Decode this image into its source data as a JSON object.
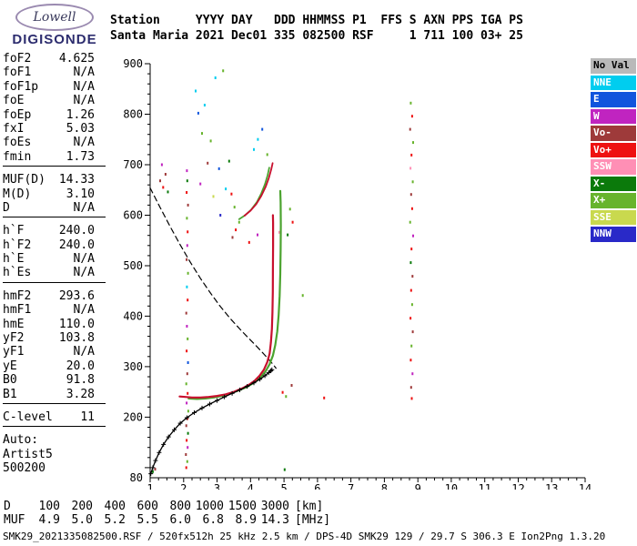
{
  "logo": {
    "name": "Lowell",
    "product": "DIGISONDE"
  },
  "header": {
    "line1": "Station     YYYY DAY   DDD HHMMSS P1  FFS S AXN PPS IGA PS",
    "line2": "Santa Maria 2021 Dec01 335 082500 RSF     1 711 100 03+ 25"
  },
  "params": {
    "groups": [
      {
        "divider": true,
        "rows": [
          {
            "label": "foF2",
            "value": "4.625"
          },
          {
            "label": "foF1",
            "value": "N/A"
          },
          {
            "label": "foF1p",
            "value": "N/A"
          },
          {
            "label": "foE",
            "value": "N/A"
          },
          {
            "label": "foEp",
            "value": "1.26"
          },
          {
            "label": "fxI",
            "value": "5.03"
          },
          {
            "label": "foEs",
            "value": "N/A"
          },
          {
            "label": "fmin",
            "value": "1.73"
          }
        ]
      },
      {
        "divider": true,
        "rows": [
          {
            "label": "MUF(D)",
            "value": "14.33"
          },
          {
            "label": "M(D)",
            "value": "3.10"
          },
          {
            "label": "D",
            "value": "N/A"
          }
        ]
      },
      {
        "divider": true,
        "rows": [
          {
            "label": "h`F",
            "value": "240.0"
          },
          {
            "label": "h`F2",
            "value": "240.0"
          },
          {
            "label": "h`E",
            "value": "N/A"
          },
          {
            "label": "h`Es",
            "value": "N/A"
          }
        ]
      },
      {
        "divider": true,
        "rows": [
          {
            "label": "hmF2",
            "value": "293.6"
          },
          {
            "label": "hmF1",
            "value": "N/A"
          },
          {
            "label": "hmE",
            "value": "110.0"
          },
          {
            "label": "yF2",
            "value": "103.8"
          },
          {
            "label": "yF1",
            "value": "N/A"
          },
          {
            "label": "yE",
            "value": "20.0"
          },
          {
            "label": "B0",
            "value": "91.8"
          },
          {
            "label": "B1",
            "value": "3.28"
          }
        ]
      },
      {
        "divider": true,
        "rows": [
          {
            "label": "C-level",
            "value": "11"
          }
        ]
      },
      {
        "divider": false,
        "rows": [
          {
            "label": "Auto:",
            "value": ""
          },
          {
            "label": "Artist5",
            "value": ""
          },
          {
            "label": "500200",
            "value": ""
          }
        ]
      }
    ]
  },
  "legend": {
    "items": [
      {
        "key": "NoVal",
        "slug": "no-val",
        "label": "No Val",
        "color": "#b9b9b9",
        "text_color": "#000000"
      },
      {
        "key": "NNE",
        "slug": "nne",
        "label": "NNE",
        "color": "#00cdef",
        "text_color": "#ffffff"
      },
      {
        "key": "E",
        "slug": "e",
        "label": "E",
        "color": "#1155dd",
        "text_color": "#ffffff"
      },
      {
        "key": "W",
        "slug": "w",
        "label": "W",
        "color": "#c024c0",
        "text_color": "#ffffff"
      },
      {
        "key": "Vo-",
        "slug": "vo-minus",
        "label": "Vo-",
        "color": "#9e3a3a",
        "text_color": "#ffffff"
      },
      {
        "key": "Vo+",
        "slug": "vo-plus",
        "label": "Vo+",
        "color": "#ee1111",
        "text_color": "#ffffff"
      },
      {
        "key": "SSW",
        "slug": "ssw",
        "label": "SSW",
        "color": "#ff8fb5",
        "text_color": "#ffffff"
      },
      {
        "key": "X-",
        "slug": "x-minus",
        "label": "X-",
        "color": "#0b7a0b",
        "text_color": "#ffffff"
      },
      {
        "key": "X+",
        "slug": "x-plus",
        "label": "X+",
        "color": "#67b42c",
        "text_color": "#ffffff"
      },
      {
        "key": "SSE",
        "slug": "sse",
        "label": "SSE",
        "color": "#c9d94e",
        "text_color": "#ffffff"
      },
      {
        "key": "NNW",
        "slug": "nnw",
        "label": "NNW",
        "color": "#2929c8",
        "text_color": "#ffffff"
      }
    ]
  },
  "chart_data": {
    "type": "scatter",
    "description": "Digisonde ionogram: echo virtual height [km] vs frequency [MHz]",
    "x_axis": {
      "min": 1,
      "max": 14,
      "unit": "MHz",
      "ticks": [
        [
          1,
          "1"
        ],
        [
          2,
          "2"
        ],
        [
          3,
          "3"
        ],
        [
          4,
          "4"
        ],
        [
          5,
          "5"
        ],
        [
          6,
          "6"
        ],
        [
          7,
          "7"
        ],
        [
          8,
          "8"
        ],
        [
          9,
          "9"
        ],
        [
          10,
          "10"
        ],
        [
          11,
          "11"
        ],
        [
          12,
          "12"
        ],
        [
          13,
          "13"
        ],
        [
          14,
          "14"
        ]
      ]
    },
    "y_axis": {
      "min": 80,
      "max": 900,
      "unit": "km",
      "ticks": [
        [
          900,
          "900"
        ],
        [
          800,
          "800"
        ],
        [
          700,
          "700"
        ],
        [
          600,
          "600"
        ],
        [
          500,
          "500"
        ],
        [
          400,
          "400"
        ],
        [
          300,
          "300"
        ],
        [
          200,
          "200"
        ],
        [
          80,
          "80"
        ]
      ]
    },
    "series": [
      {
        "name": "muf-transmission-curve",
        "color": "#000000",
        "width": 1.2,
        "dash": "6,4",
        "points": [
          [
            1.0,
            654
          ],
          [
            1.3,
            615
          ],
          [
            1.6,
            577
          ],
          [
            1.9,
            541
          ],
          [
            2.2,
            507
          ],
          [
            2.5,
            475
          ],
          [
            2.8,
            446
          ],
          [
            3.1,
            419
          ],
          [
            3.4,
            395
          ],
          [
            3.7,
            373
          ],
          [
            3.95,
            356
          ],
          [
            4.2,
            339
          ],
          [
            4.4,
            325
          ],
          [
            4.55,
            314
          ],
          [
            4.68,
            304
          ],
          [
            4.76,
            297
          ]
        ]
      },
      {
        "name": "second-hop-x-trace",
        "color": "#4ba32f",
        "width": 1.8,
        "points": [
          [
            3.66,
            592
          ],
          [
            3.84,
            600
          ],
          [
            4.02,
            611
          ],
          [
            4.19,
            626
          ],
          [
            4.32,
            643
          ],
          [
            4.43,
            661
          ],
          [
            4.51,
            679
          ],
          [
            4.56,
            694
          ]
        ]
      },
      {
        "name": "second-hop-o-trace",
        "color": "#c8102e",
        "width": 1.8,
        "points": [
          [
            3.82,
            599
          ],
          [
            4.0,
            609
          ],
          [
            4.17,
            622
          ],
          [
            4.32,
            638
          ],
          [
            4.45,
            656
          ],
          [
            4.55,
            674
          ],
          [
            4.62,
            691
          ],
          [
            4.66,
            703
          ]
        ]
      },
      {
        "name": "x-trace",
        "color": "#4ba32f",
        "width": 2.2,
        "points": [
          [
            2.15,
            237
          ],
          [
            2.4,
            236
          ],
          [
            2.65,
            237
          ],
          [
            2.9,
            239
          ],
          [
            3.15,
            242
          ],
          [
            3.4,
            247
          ],
          [
            3.65,
            253
          ],
          [
            3.9,
            260
          ],
          [
            4.12,
            269
          ],
          [
            4.3,
            279
          ],
          [
            4.45,
            291
          ],
          [
            4.57,
            305
          ],
          [
            4.67,
            322
          ],
          [
            4.74,
            343
          ],
          [
            4.8,
            370
          ],
          [
            4.84,
            402
          ],
          [
            4.87,
            440
          ],
          [
            4.89,
            484
          ],
          [
            4.9,
            532
          ],
          [
            4.905,
            580
          ],
          [
            4.9,
            625
          ],
          [
            4.89,
            648
          ]
        ]
      },
      {
        "name": "o-trace",
        "color": "#c8102e",
        "width": 2.2,
        "points": [
          [
            1.88,
            241
          ],
          [
            2.05,
            240
          ],
          [
            2.25,
            239
          ],
          [
            2.5,
            239
          ],
          [
            2.75,
            240
          ],
          [
            3.0,
            242
          ],
          [
            3.25,
            245
          ],
          [
            3.5,
            250
          ],
          [
            3.75,
            257
          ],
          [
            3.95,
            264
          ],
          [
            4.12,
            272
          ],
          [
            4.27,
            282
          ],
          [
            4.4,
            294
          ],
          [
            4.5,
            309
          ],
          [
            4.57,
            326
          ],
          [
            4.61,
            348
          ],
          [
            4.64,
            375
          ],
          [
            4.655,
            408
          ],
          [
            4.665,
            448
          ],
          [
            4.67,
            492
          ],
          [
            4.675,
            540
          ],
          [
            4.675,
            585
          ],
          [
            4.67,
            600
          ]
        ]
      },
      {
        "name": "true-height-profile",
        "color": "#000000",
        "width": 1.3,
        "markers": true,
        "points": [
          [
            1.02,
            88
          ],
          [
            1.08,
            100
          ],
          [
            1.16,
            114
          ],
          [
            1.27,
            130
          ],
          [
            1.4,
            146
          ],
          [
            1.55,
            161
          ],
          [
            1.72,
            175
          ],
          [
            1.9,
            188
          ],
          [
            2.1,
            199
          ],
          [
            2.32,
            209
          ],
          [
            2.55,
            218
          ],
          [
            2.78,
            226
          ],
          [
            3.0,
            233
          ],
          [
            3.22,
            240
          ],
          [
            3.45,
            247
          ],
          [
            3.68,
            254
          ],
          [
            3.9,
            261
          ],
          [
            4.1,
            268
          ],
          [
            4.28,
            275
          ],
          [
            4.43,
            282
          ],
          [
            4.54,
            288
          ],
          [
            4.61,
            292
          ],
          [
            4.64,
            294
          ]
        ]
      }
    ],
    "echoes": [
      [
        2.08,
        100,
        "Vo+"
      ],
      [
        2.11,
        112,
        "X+"
      ],
      [
        2.07,
        126,
        "Vo-"
      ],
      [
        2.12,
        140,
        "W"
      ],
      [
        2.09,
        154,
        "Vo+"
      ],
      [
        2.13,
        168,
        "X-"
      ],
      [
        2.08,
        183,
        "Vo-"
      ],
      [
        2.11,
        197,
        "Vo+"
      ],
      [
        2.14,
        212,
        "X+"
      ],
      [
        2.09,
        228,
        "W"
      ],
      [
        2.12,
        247,
        "Vo+"
      ],
      [
        2.08,
        266,
        "X+"
      ],
      [
        2.11,
        286,
        "Vo-"
      ],
      [
        2.13,
        308,
        "E"
      ],
      [
        2.09,
        331,
        "Vo+"
      ],
      [
        2.12,
        355,
        "X+"
      ],
      [
        2.1,
        380,
        "W"
      ],
      [
        2.08,
        406,
        "Vo-"
      ],
      [
        2.12,
        432,
        "Vo+"
      ],
      [
        2.1,
        458,
        "NNE"
      ],
      [
        2.13,
        485,
        "X+"
      ],
      [
        2.09,
        512,
        "Vo-"
      ],
      [
        2.11,
        540,
        "W"
      ],
      [
        2.12,
        567,
        "Vo+"
      ],
      [
        2.1,
        594,
        "X+"
      ],
      [
        2.13,
        620,
        "Vo-"
      ],
      [
        2.09,
        645,
        "Vo+"
      ],
      [
        2.11,
        668,
        "X-"
      ],
      [
        2.1,
        688,
        "W"
      ],
      [
        2.36,
        846,
        "NNE"
      ],
      [
        2.44,
        802,
        "E"
      ],
      [
        2.55,
        762,
        "X+"
      ],
      [
        2.63,
        818,
        "NNE"
      ],
      [
        2.72,
        703,
        "Vo-"
      ],
      [
        2.81,
        747,
        "X+"
      ],
      [
        2.95,
        872,
        "NNE"
      ],
      [
        3.06,
        692,
        "E"
      ],
      [
        3.18,
        886,
        "X+"
      ],
      [
        3.26,
        652,
        "NNE"
      ],
      [
        3.36,
        707,
        "X-"
      ],
      [
        3.43,
        642,
        "Vo+"
      ],
      [
        3.52,
        616,
        "X+"
      ],
      [
        2.5,
        662,
        "W"
      ],
      [
        2.89,
        637,
        "SSE"
      ],
      [
        3.1,
        600,
        "NNW"
      ],
      [
        4.22,
        750,
        "NNE"
      ],
      [
        4.35,
        770,
        "E"
      ],
      [
        4.1,
        730,
        "NNE"
      ],
      [
        4.5,
        720,
        "X+"
      ],
      [
        1.3,
        668,
        "Vo-"
      ],
      [
        1.39,
        655,
        "Vo+"
      ],
      [
        1.46,
        681,
        "Vo-"
      ],
      [
        1.53,
        646,
        "X-"
      ],
      [
        1.35,
        700,
        "W"
      ],
      [
        8.79,
        822,
        "X+"
      ],
      [
        8.83,
        796,
        "Vo+"
      ],
      [
        8.77,
        770,
        "Vo-"
      ],
      [
        8.86,
        744,
        "X+"
      ],
      [
        8.81,
        719,
        "Vo+"
      ],
      [
        8.78,
        693,
        "SSW"
      ],
      [
        8.85,
        666,
        "X+"
      ],
      [
        8.8,
        641,
        "Vo-"
      ],
      [
        8.83,
        613,
        "Vo+"
      ],
      [
        8.77,
        586,
        "X+"
      ],
      [
        8.86,
        559,
        "W"
      ],
      [
        8.81,
        533,
        "Vo+"
      ],
      [
        8.79,
        506,
        "X-"
      ],
      [
        8.84,
        479,
        "Vo-"
      ],
      [
        8.8,
        451,
        "Vo+"
      ],
      [
        8.83,
        423,
        "X+"
      ],
      [
        8.78,
        396,
        "Vo+"
      ],
      [
        8.85,
        369,
        "Vo-"
      ],
      [
        8.81,
        341,
        "X+"
      ],
      [
        8.79,
        313,
        "Vo+"
      ],
      [
        8.84,
        286,
        "W"
      ],
      [
        8.8,
        259,
        "Vo-"
      ],
      [
        8.82,
        237,
        "Vo+"
      ],
      [
        5.18,
        612,
        "X+"
      ],
      [
        5.26,
        586,
        "Vo+"
      ],
      [
        5.11,
        561,
        "X-"
      ],
      [
        4.96,
        249,
        "Vo+"
      ],
      [
        5.06,
        241,
        "X+"
      ],
      [
        5.23,
        263,
        "Vo-"
      ],
      [
        5.56,
        441,
        "X+"
      ],
      [
        4.86,
        566,
        "SSW"
      ],
      [
        4.21,
        561,
        "W"
      ],
      [
        3.96,
        546,
        "Vo+"
      ],
      [
        3.56,
        571,
        "Vo+"
      ],
      [
        3.66,
        586,
        "X+"
      ],
      [
        3.46,
        556,
        "Vo-"
      ],
      [
        1.08,
        92,
        "X-"
      ],
      [
        1.15,
        97,
        "Vo-"
      ],
      [
        5.02,
        96,
        "X-"
      ],
      [
        6.2,
        238,
        "Vo+"
      ]
    ]
  },
  "footer": {
    "rows": [
      {
        "label": "D",
        "values": [
          "100",
          "200",
          "400",
          "600",
          "800",
          "1000",
          "1500",
          "3000"
        ],
        "unit": "[km]"
      },
      {
        "label": "MUF",
        "values": [
          "4.9",
          "5.0",
          "5.2",
          "5.5",
          "6.0",
          "6.8",
          "8.9",
          "14.3"
        ],
        "unit": "[MHz]"
      }
    ],
    "status": "SMK29_2021335082500.RSF / 520fx512h 25 kHz 2.5 km / DPS-4D SMK29 129 / 29.7 S 306.3 E Ion2Png 1.3.20"
  }
}
